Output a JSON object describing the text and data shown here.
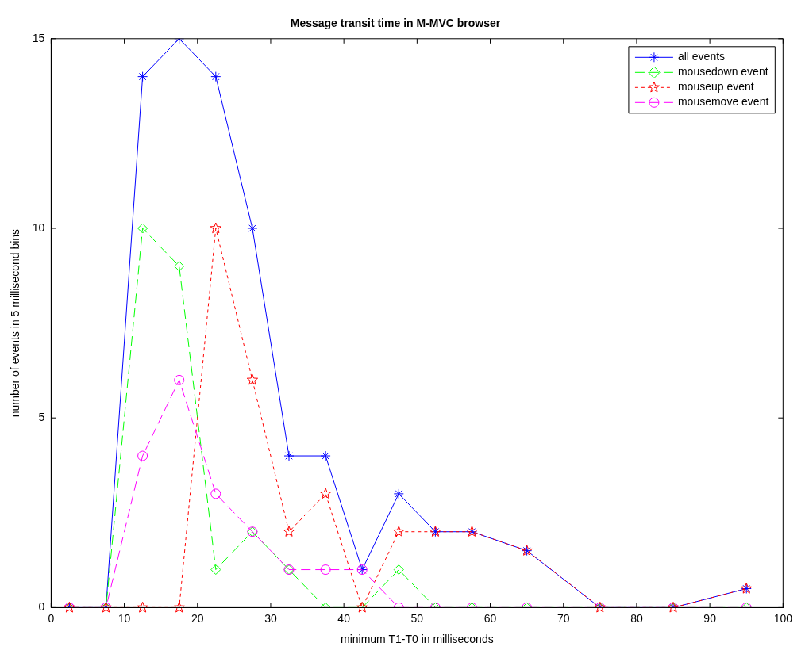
{
  "chart_data": {
    "type": "line",
    "title": "Message transit time in M-MVC browser",
    "xlabel": "minimum T1-T0 in milliseconds",
    "ylabel": "number of events in 5 millisecond bins",
    "x": [
      2.5,
      7.5,
      12.5,
      17.5,
      22.5,
      27.5,
      32.5,
      37.5,
      42.5,
      47.5,
      52.5,
      57.5,
      65,
      75,
      85,
      95
    ],
    "series": [
      {
        "name": "all events",
        "color": "#0000ff",
        "marker": "cross",
        "line_style": "solid",
        "values": [
          0,
          0,
          14,
          15,
          14,
          10,
          4,
          4,
          1,
          3,
          2,
          2,
          1.5,
          0,
          0,
          0.5
        ]
      },
      {
        "name": "mousedown event",
        "color": "#00ff00",
        "marker": "diamond",
        "line_style": "dashed",
        "values": [
          0,
          0,
          10,
          9,
          1,
          2,
          1,
          0,
          0,
          1,
          0,
          0,
          0,
          0,
          0,
          0
        ]
      },
      {
        "name": "mouseup event",
        "color": "#ff0000",
        "marker": "star",
        "line_style": "dotted",
        "values": [
          0,
          0,
          0,
          0,
          10,
          6,
          2,
          3,
          0,
          2,
          2,
          2,
          1.5,
          0,
          0,
          0.5
        ]
      },
      {
        "name": "mousemove event",
        "color": "#ff00ff",
        "marker": "circle",
        "line_style": "dashed",
        "values": [
          0,
          0,
          4,
          6,
          3,
          2,
          1,
          1,
          1,
          0,
          0,
          0,
          0,
          0,
          0,
          0
        ]
      }
    ],
    "xlim": [
      0,
      100
    ],
    "xticks": [
      0,
      10,
      20,
      30,
      40,
      50,
      60,
      70,
      80,
      90,
      100
    ],
    "ylim": [
      0,
      15
    ],
    "yticks": [
      0,
      5,
      10,
      15
    ],
    "grid": false,
    "legend": "top right"
  }
}
